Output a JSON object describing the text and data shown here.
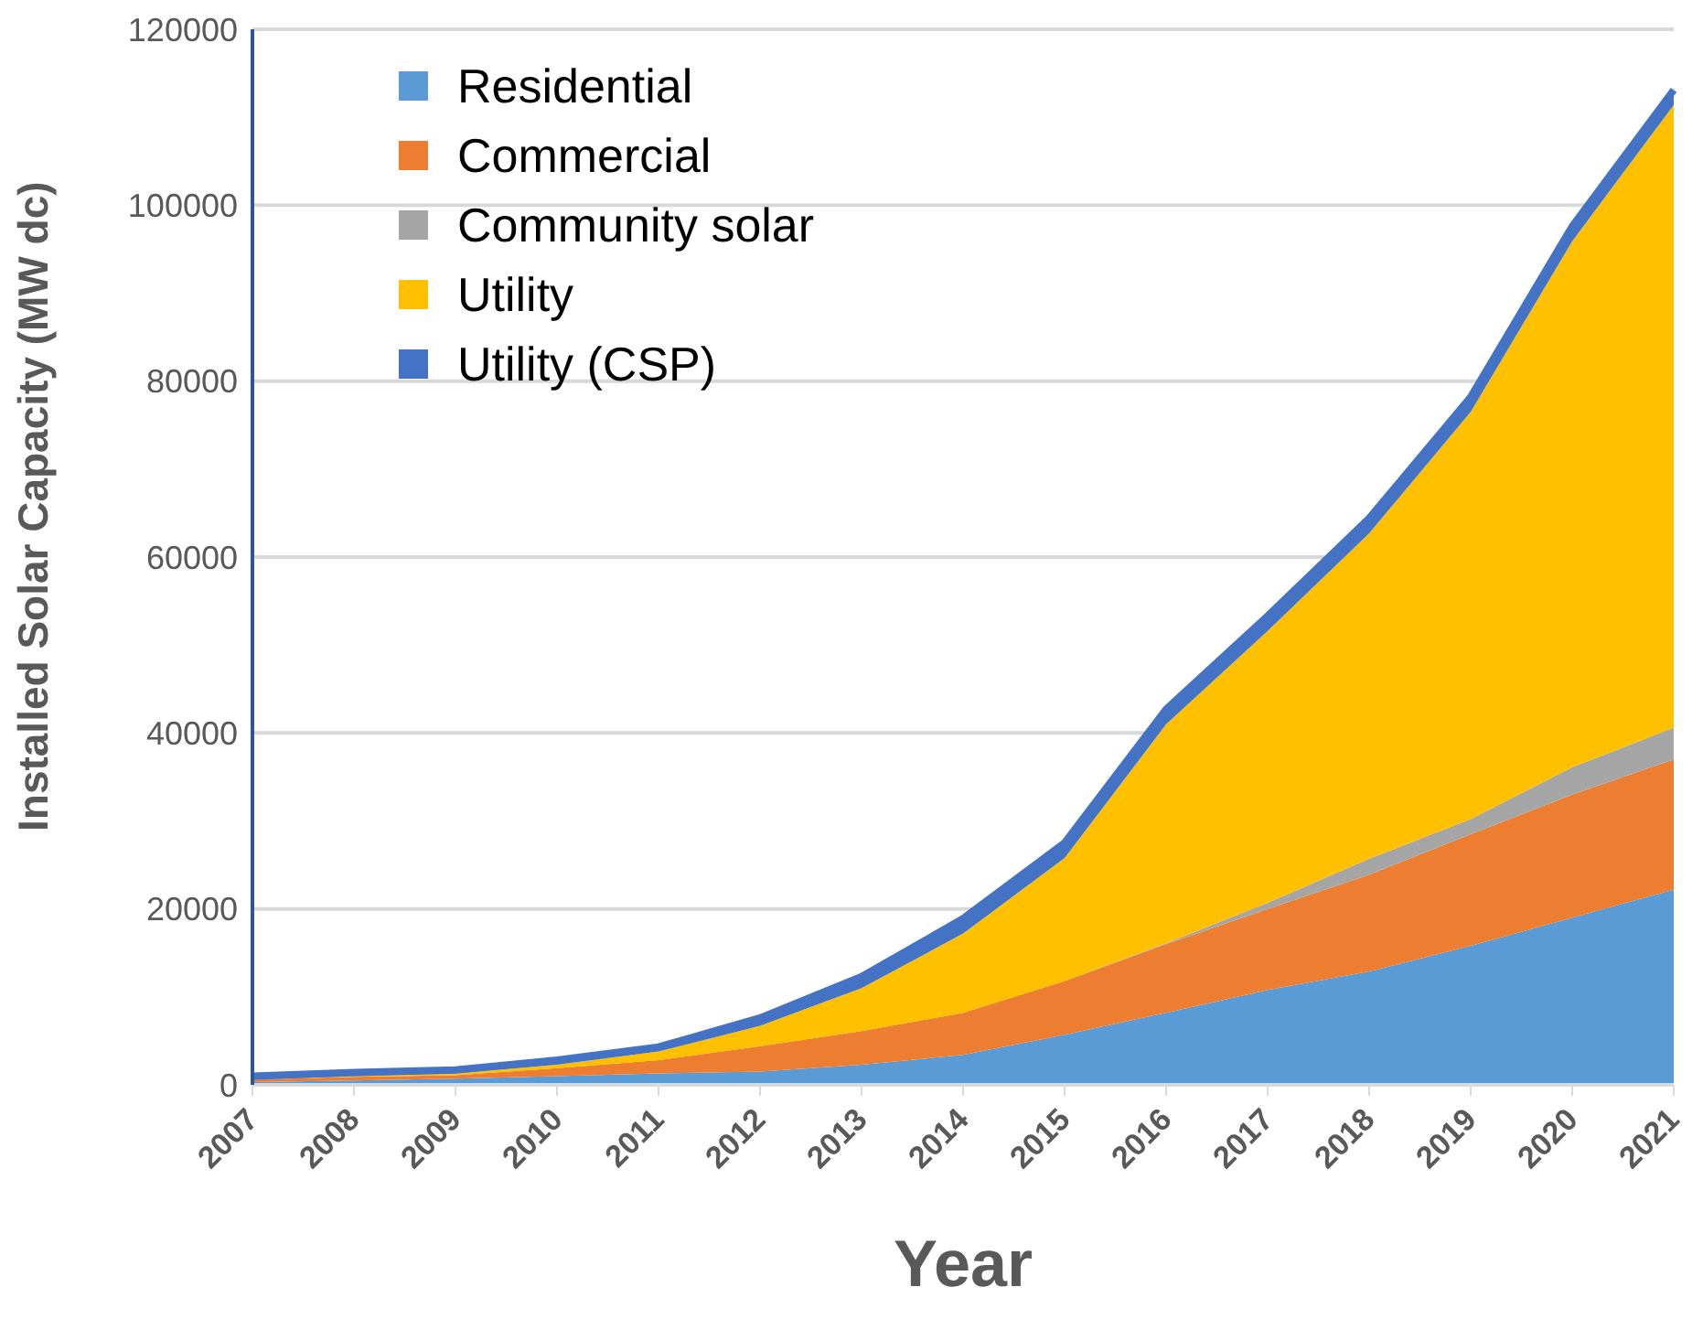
{
  "chart_data": {
    "type": "area",
    "stacked": true,
    "xlabel": "Year",
    "ylabel": "Installed Solar Capacity (MW dc)",
    "categories": [
      "2007",
      "2008",
      "2009",
      "2010",
      "2011",
      "2012",
      "2013",
      "2014",
      "2015",
      "2016",
      "2017",
      "2018",
      "2019",
      "2020",
      "2021"
    ],
    "series": [
      {
        "name": "Residential",
        "color": "#5b9bd5",
        "values": [
          300,
          500,
          700,
          1000,
          1300,
          1500,
          2300,
          3400,
          5700,
          8200,
          10800,
          12900,
          15800,
          19000,
          22200
        ]
      },
      {
        "name": "Commercial",
        "color": "#ed7d31",
        "values": [
          300,
          400,
          400,
          900,
          1500,
          2900,
          3800,
          4800,
          6100,
          7800,
          9200,
          11000,
          12700,
          14000,
          14800
        ]
      },
      {
        "name": "Community solar",
        "color": "#a5a5a5",
        "values": [
          0,
          0,
          0,
          0,
          0,
          0,
          0,
          0,
          0,
          100,
          700,
          1800,
          1700,
          3100,
          3600
        ]
      },
      {
        "name": "Utility",
        "color": "#ffc000",
        "values": [
          0,
          100,
          200,
          400,
          1000,
          2300,
          4900,
          9000,
          14000,
          24900,
          30900,
          37000,
          46300,
          59800,
          70800
        ]
      },
      {
        "name": "Utility (CSP)",
        "color": "#4472c4",
        "values": [
          400,
          400,
          400,
          500,
          500,
          900,
          1300,
          1700,
          1700,
          1700,
          1700,
          1700,
          1700,
          1700,
          1700
        ]
      }
    ],
    "ylim": [
      0,
      120000
    ],
    "yticks": [
      0,
      20000,
      40000,
      60000,
      80000,
      100000,
      120000
    ],
    "grid": "y",
    "legend": "top left"
  }
}
